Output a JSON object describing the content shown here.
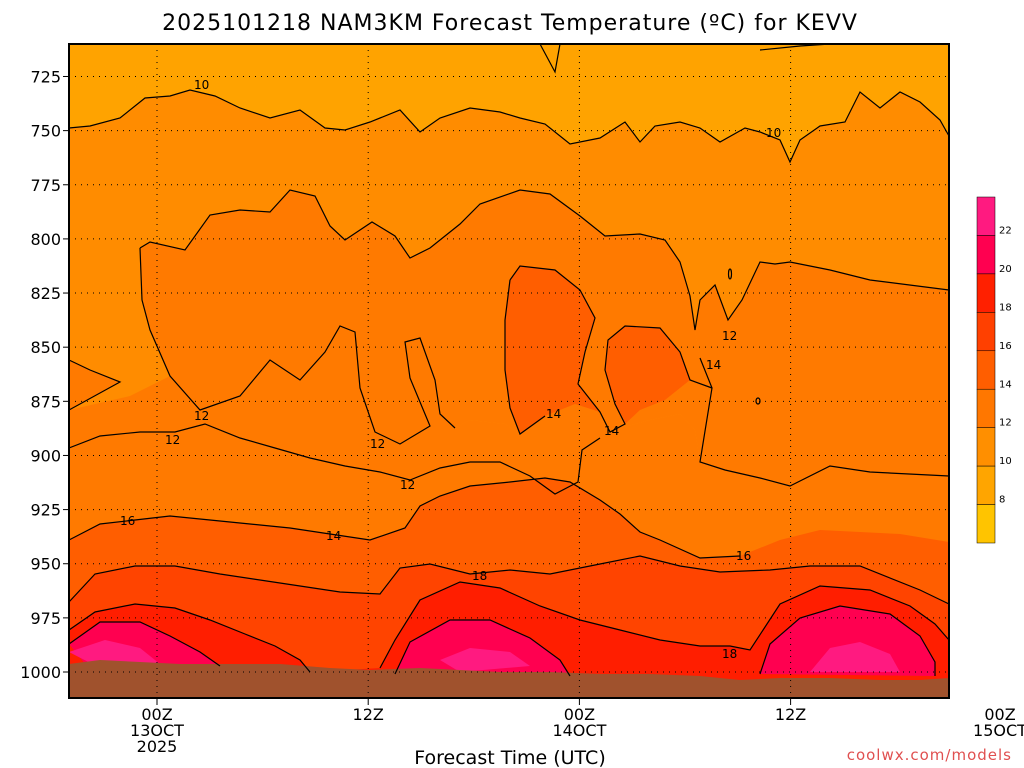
{
  "chart_data": {
    "type": "contour",
    "title": "2025101218 NAM3KM Forecast Temperature (ºC) for KEVV",
    "xlabel": "Forecast Time (UTC)",
    "ylabel": "",
    "credit": "coolwx.com/models",
    "y_axis": {
      "unit": "hPa",
      "reversed": true,
      "range": [
        710,
        1012
      ],
      "ticks": [
        725,
        750,
        775,
        800,
        825,
        850,
        875,
        900,
        925,
        950,
        975,
        1000
      ],
      "tick_labels": [
        "725",
        "750",
        "775",
        "800",
        "825",
        "850",
        "875",
        "900",
        "925",
        "950",
        "975",
        "1000"
      ]
    },
    "x_axis": {
      "unit": "forecast hour",
      "range": [
        1,
        51
      ],
      "ticks": [
        6,
        18,
        30,
        42
      ],
      "tick_labels": [
        {
          "line1": "00Z",
          "line2": "13OCT",
          "line3": "2025"
        },
        {
          "line1": "12Z",
          "line2": "",
          "line3": ""
        },
        {
          "line1": "00Z",
          "line2": "14OCT",
          "line3": ""
        },
        {
          "line1": "12Z",
          "line2": "",
          "line3": ""
        },
        {
          "line1": "00Z",
          "line2": "15OCT",
          "line3": ""
        }
      ],
      "tick_positions": [
        6,
        18,
        30,
        42,
        54
      ]
    },
    "grid": true,
    "colorbar": {
      "levels": [
        22,
        20,
        18,
        16,
        14,
        12,
        10,
        8
      ],
      "labels": [
        "22",
        "20",
        "18",
        "16",
        "14",
        "12",
        "10",
        "8"
      ],
      "colors": [
        "#ffc400",
        "#ffa500",
        "#ff8f00",
        "#ff7700",
        "#ff5e00",
        "#ff4000",
        "#ff2000",
        "#ff0050",
        "#ff1a80"
      ]
    },
    "contour_labels": [
      "10",
      "10",
      "12",
      "12",
      "12",
      "12",
      "12",
      "12",
      "14",
      "14",
      "14",
      "14",
      "16",
      "16",
      "18",
      "18"
    ],
    "colors": {
      "ground": "#a0522d",
      "frame": "#000000"
    }
  }
}
